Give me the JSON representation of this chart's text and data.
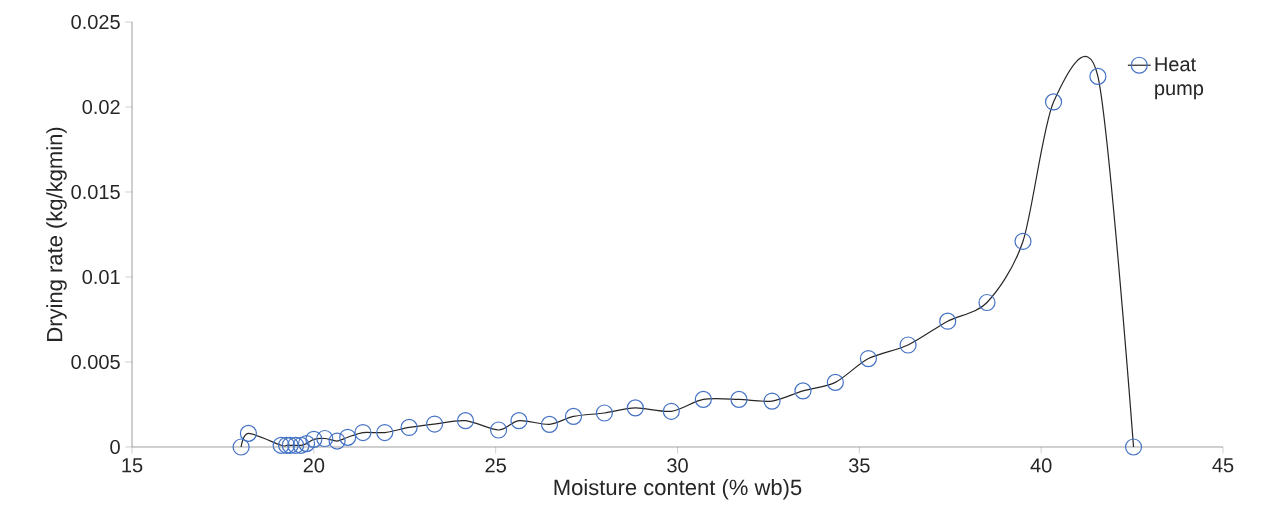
{
  "chart_data": {
    "type": "line",
    "xlabel": "Moisture content  (% wb)5",
    "ylabel": "Drying rate (kg/kgmin)",
    "xlim": [
      15,
      45
    ],
    "ylim": [
      0,
      0.025
    ],
    "xticks": [
      15,
      20,
      25,
      30,
      35,
      40,
      45
    ],
    "yticks": [
      0,
      0.005,
      0.01,
      0.015,
      0.02,
      0.025
    ],
    "grid": false,
    "legend": "top right",
    "marker": "circle",
    "line_style": "solid",
    "series": [
      {
        "name": "Heat pump",
        "color": "#4472c4",
        "x": [
          18.0,
          18.2,
          19.1,
          19.25,
          19.35,
          19.5,
          19.65,
          19.8,
          20.0,
          20.3,
          20.64,
          20.93,
          21.35,
          21.95,
          22.62,
          23.32,
          24.17,
          25.08,
          25.64,
          26.48,
          27.14,
          27.99,
          28.84,
          29.83,
          30.71,
          31.69,
          32.6,
          33.45,
          34.34,
          35.25,
          36.34,
          37.43,
          38.51,
          39.5,
          40.34,
          41.56,
          42.54
        ],
        "values": [
          0.0,
          0.0008,
          0.0001,
          0.0001,
          0.0001,
          0.0001,
          0.0001,
          0.0002,
          0.00045,
          0.0005,
          0.00035,
          0.00057,
          0.00085,
          0.00085,
          0.00115,
          0.00135,
          0.00155,
          0.001,
          0.00155,
          0.00133,
          0.0018,
          0.002,
          0.0023,
          0.0021,
          0.0028,
          0.0028,
          0.0027,
          0.0033,
          0.0038,
          0.0052,
          0.006,
          0.0074,
          0.0085,
          0.0121,
          0.0203,
          0.0218,
          0.0
        ]
      }
    ]
  }
}
